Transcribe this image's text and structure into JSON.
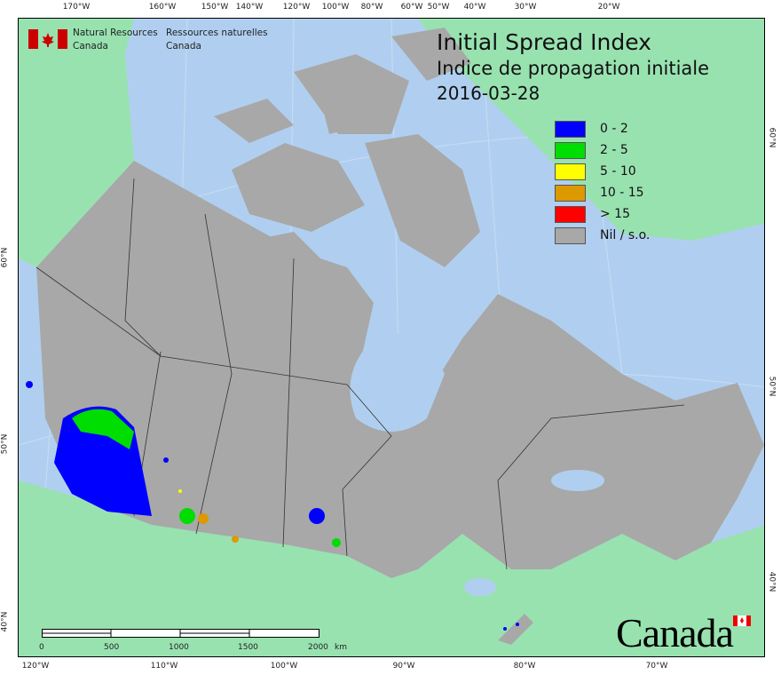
{
  "title": {
    "en": "Initial Spread Index",
    "fr": "Indice de propagation initiale",
    "date": "2016-03-28"
  },
  "agency": {
    "en_line1": "Natural Resources",
    "en_line2": "Canada",
    "fr_line1": "Ressources naturelles",
    "fr_line2": "Canada"
  },
  "wordmark": "Canada",
  "legend": [
    {
      "label": "0 - 2",
      "color": "#0000ff"
    },
    {
      "label": "2 - 5",
      "color": "#00dd00"
    },
    {
      "label": "5 - 10",
      "color": "#ffff00"
    },
    {
      "label": "10 - 15",
      "color": "#dd9900"
    },
    {
      "label": "> 15",
      "color": "#ff0000"
    },
    {
      "label": "Nil / s.o.",
      "color": "#a8a8a8"
    }
  ],
  "top_ticks": [
    "170°W",
    "160°W",
    "150°W",
    "140°W",
    "120°W",
    "100°W",
    "80°W",
    "60°W",
    "50°W",
    "40°W",
    "30°W",
    "20°W"
  ],
  "bottom_ticks": [
    "120°W",
    "110°W",
    "100°W",
    "90°W",
    "80°W",
    "70°W"
  ],
  "left_ticks": [
    "60°N",
    "50°N",
    "40°N"
  ],
  "right_ticks": [
    "60°N",
    "50°N",
    "40°N"
  ],
  "scale": {
    "labels": [
      "0",
      "500",
      "1000",
      "1500",
      "2000"
    ],
    "unit": "km"
  },
  "colors": {
    "water": "#b0cff0",
    "land_other": "#98e2b0",
    "canada_nil": "#a8a8a8"
  }
}
